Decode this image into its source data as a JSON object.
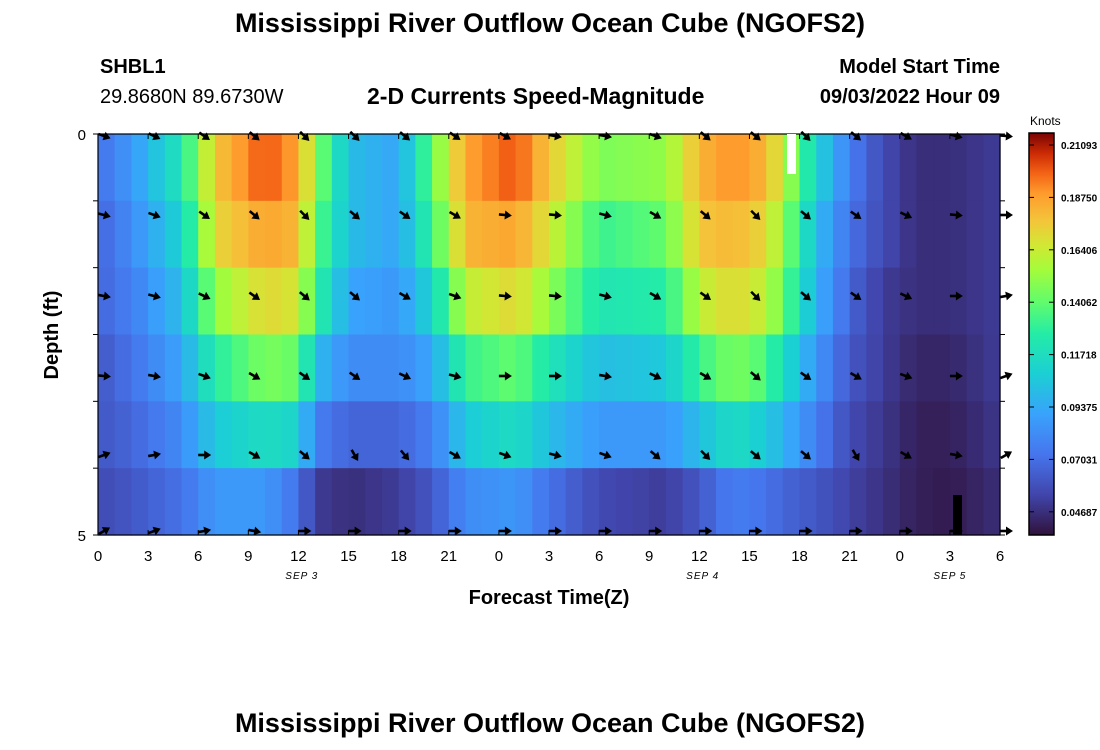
{
  "figure": {
    "title": "Mississippi River Outflow Ocean Cube (NGOFS2)",
    "station": "SHBL1",
    "coordinates": "29.8680N  89.6730W",
    "subtitle": "2-D Currents Speed-Magnitude",
    "model_start_label": "Model Start Time",
    "model_start_value": "09/03/2022 Hour 09",
    "bottom_title": "Mississippi River Outflow Ocean Cube (NGOFS2)"
  },
  "chart_data": {
    "type": "heatmap",
    "xlabel": "Forecast Time(Z)",
    "ylabel": "Depth (ft)",
    "x_tick_labels": [
      "0",
      "3",
      "6",
      "9",
      "12",
      "15",
      "18",
      "21",
      "0",
      "3",
      "6",
      "9",
      "12",
      "15",
      "18",
      "21",
      "0",
      "3",
      "6"
    ],
    "y_tick_labels": [
      "0",
      "5"
    ],
    "date_labels": [
      "SEP 3",
      "SEP 4",
      "SEP 5"
    ],
    "colorbar": {
      "unit": "Knots",
      "tick_labels": [
        "0.21093",
        "0.18750",
        "0.16406",
        "0.14062",
        "0.11718",
        "0.09375",
        "0.07031",
        "0.04687"
      ],
      "range": [
        0.035,
        0.215
      ]
    },
    "depth_rows": 6,
    "speed_profiles": [
      [
        [
          0,
          0.07
        ],
        [
          2,
          0.085
        ],
        [
          5,
          0.12
        ],
        [
          7,
          0.175
        ],
        [
          10,
          0.2
        ],
        [
          12,
          0.185
        ],
        [
          13,
          0.15
        ],
        [
          15,
          0.1
        ],
        [
          18,
          0.09
        ],
        [
          20,
          0.14
        ],
        [
          22,
          0.185
        ],
        [
          25,
          0.2
        ],
        [
          27,
          0.175
        ],
        [
          30,
          0.145
        ],
        [
          34,
          0.15
        ],
        [
          36,
          0.18
        ],
        [
          38,
          0.19
        ],
        [
          40,
          0.18
        ],
        [
          41,
          0.16
        ],
        [
          43,
          0.11
        ],
        [
          45,
          0.075
        ],
        [
          47,
          0.055
        ],
        [
          49,
          0.045
        ],
        [
          51,
          0.045
        ],
        [
          54,
          0.05
        ]
      ],
      [
        [
          0,
          0.065
        ],
        [
          2,
          0.08
        ],
        [
          5,
          0.11
        ],
        [
          7,
          0.17
        ],
        [
          10,
          0.185
        ],
        [
          12,
          0.18
        ],
        [
          13,
          0.14
        ],
        [
          15,
          0.1
        ],
        [
          18,
          0.09
        ],
        [
          20,
          0.13
        ],
        [
          22,
          0.18
        ],
        [
          25,
          0.185
        ],
        [
          27,
          0.165
        ],
        [
          30,
          0.13
        ],
        [
          34,
          0.14
        ],
        [
          36,
          0.175
        ],
        [
          38,
          0.18
        ],
        [
          40,
          0.17
        ],
        [
          41,
          0.15
        ],
        [
          43,
          0.1
        ],
        [
          45,
          0.07
        ],
        [
          47,
          0.055
        ],
        [
          49,
          0.045
        ],
        [
          51,
          0.045
        ],
        [
          54,
          0.05
        ]
      ],
      [
        [
          0,
          0.065
        ],
        [
          2,
          0.075
        ],
        [
          5,
          0.1
        ],
        [
          7,
          0.15
        ],
        [
          10,
          0.17
        ],
        [
          12,
          0.165
        ],
        [
          13,
          0.13
        ],
        [
          15,
          0.09
        ],
        [
          18,
          0.085
        ],
        [
          20,
          0.11
        ],
        [
          22,
          0.16
        ],
        [
          25,
          0.17
        ],
        [
          27,
          0.15
        ],
        [
          30,
          0.12
        ],
        [
          34,
          0.125
        ],
        [
          36,
          0.16
        ],
        [
          38,
          0.17
        ],
        [
          40,
          0.16
        ],
        [
          41,
          0.14
        ],
        [
          43,
          0.095
        ],
        [
          45,
          0.065
        ],
        [
          47,
          0.05
        ],
        [
          49,
          0.045
        ],
        [
          51,
          0.045
        ],
        [
          54,
          0.05
        ]
      ],
      [
        [
          0,
          0.06
        ],
        [
          2,
          0.07
        ],
        [
          5,
          0.09
        ],
        [
          7,
          0.125
        ],
        [
          10,
          0.145
        ],
        [
          12,
          0.14
        ],
        [
          13,
          0.1
        ],
        [
          15,
          0.08
        ],
        [
          18,
          0.08
        ],
        [
          20,
          0.09
        ],
        [
          22,
          0.13
        ],
        [
          25,
          0.14
        ],
        [
          27,
          0.12
        ],
        [
          30,
          0.1
        ],
        [
          34,
          0.105
        ],
        [
          36,
          0.13
        ],
        [
          38,
          0.145
        ],
        [
          40,
          0.135
        ],
        [
          41,
          0.115
        ],
        [
          43,
          0.085
        ],
        [
          45,
          0.06
        ],
        [
          47,
          0.05
        ],
        [
          49,
          0.042
        ],
        [
          51,
          0.042
        ],
        [
          54,
          0.05
        ]
      ],
      [
        [
          0,
          0.06
        ],
        [
          2,
          0.065
        ],
        [
          5,
          0.08
        ],
        [
          7,
          0.105
        ],
        [
          10,
          0.115
        ],
        [
          12,
          0.11
        ],
        [
          13,
          0.075
        ],
        [
          15,
          0.065
        ],
        [
          18,
          0.065
        ],
        [
          20,
          0.075
        ],
        [
          22,
          0.105
        ],
        [
          25,
          0.115
        ],
        [
          27,
          0.1
        ],
        [
          30,
          0.085
        ],
        [
          34,
          0.085
        ],
        [
          36,
          0.1
        ],
        [
          38,
          0.115
        ],
        [
          40,
          0.105
        ],
        [
          41,
          0.095
        ],
        [
          43,
          0.075
        ],
        [
          45,
          0.055
        ],
        [
          47,
          0.048
        ],
        [
          49,
          0.04
        ],
        [
          51,
          0.04
        ],
        [
          54,
          0.048
        ]
      ],
      [
        [
          0,
          0.055
        ],
        [
          2,
          0.06
        ],
        [
          5,
          0.07
        ],
        [
          7,
          0.085
        ],
        [
          10,
          0.085
        ],
        [
          12,
          0.07
        ],
        [
          13,
          0.05
        ],
        [
          15,
          0.045
        ],
        [
          18,
          0.05
        ],
        [
          20,
          0.06
        ],
        [
          22,
          0.08
        ],
        [
          25,
          0.085
        ],
        [
          27,
          0.07
        ],
        [
          30,
          0.055
        ],
        [
          34,
          0.05
        ],
        [
          36,
          0.06
        ],
        [
          38,
          0.075
        ],
        [
          40,
          0.07
        ],
        [
          41,
          0.065
        ],
        [
          43,
          0.06
        ],
        [
          45,
          0.052
        ],
        [
          47,
          0.046
        ],
        [
          49,
          0.04
        ],
        [
          51,
          0.038
        ],
        [
          54,
          0.045
        ]
      ]
    ],
    "arrow_angles_deg": [
      [
        20,
        25,
        35,
        40,
        45,
        45,
        40,
        35,
        30,
        10,
        10,
        20,
        40,
        40,
        45,
        40,
        30,
        15,
        5
      ],
      [
        15,
        20,
        35,
        40,
        45,
        40,
        35,
        30,
        5,
        5,
        15,
        30,
        40,
        45,
        40,
        35,
        25,
        5,
        0
      ],
      [
        10,
        15,
        25,
        35,
        40,
        40,
        30,
        20,
        5,
        5,
        15,
        30,
        35,
        45,
        40,
        35,
        25,
        0,
        -10
      ],
      [
        5,
        10,
        20,
        30,
        35,
        35,
        25,
        15,
        0,
        0,
        10,
        25,
        30,
        40,
        35,
        30,
        20,
        0,
        -20
      ],
      [
        -20,
        -10,
        0,
        30,
        40,
        60,
        50,
        30,
        20,
        15,
        20,
        40,
        45,
        40,
        40,
        60,
        30,
        10,
        -30
      ],
      [
        -30,
        -20,
        -10,
        10,
        0,
        0,
        0,
        0,
        0,
        0,
        0,
        0,
        0,
        0,
        0,
        0,
        0,
        0,
        0
      ]
    ]
  }
}
